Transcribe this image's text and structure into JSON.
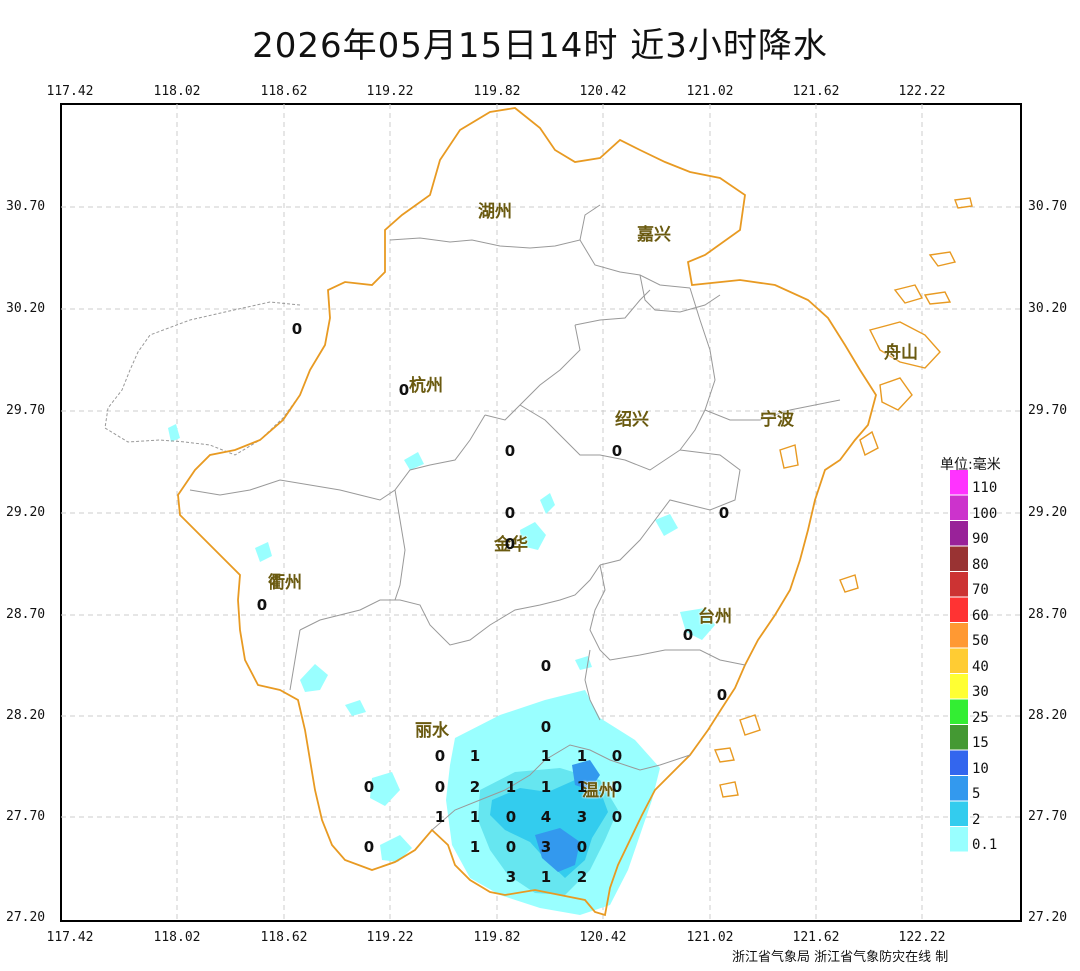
{
  "title": "2026年05月15日14时  近3小时降水",
  "x_ticks": [
    "117.42",
    "118.02",
    "118.62",
    "119.22",
    "119.82",
    "120.42",
    "121.02",
    "121.62",
    "122.22"
  ],
  "y_ticks": [
    "30.70",
    "30.20",
    "29.70",
    "29.20",
    "28.70",
    "28.20",
    "27.70",
    "27.20"
  ],
  "cities": [
    "湖州",
    "嘉兴",
    "杭州",
    "绍兴",
    "宁波",
    "舟山",
    "金华",
    "衢州",
    "台州",
    "丽水",
    "温州"
  ],
  "station_values": [
    "0",
    "0",
    "0",
    "0",
    "0",
    "0",
    "0",
    "0",
    "0",
    "0",
    "0",
    "0",
    "0",
    "1",
    "1",
    "1",
    "0",
    "0",
    "0",
    "2",
    "1",
    "1",
    "1",
    "0",
    "1",
    "1",
    "0",
    "4",
    "3",
    "0",
    "0",
    "1",
    "0",
    "3",
    "0",
    "3",
    "1",
    "2"
  ],
  "legend": {
    "title": "单位:毫米",
    "levels": [
      {
        "label": "110",
        "color": "#ff33ff"
      },
      {
        "label": "100",
        "color": "#cc33cc"
      },
      {
        "label": "90",
        "color": "#992299"
      },
      {
        "label": "80",
        "color": "#993333"
      },
      {
        "label": "70",
        "color": "#cc3333"
      },
      {
        "label": "60",
        "color": "#ff3333"
      },
      {
        "label": "50",
        "color": "#ff9933"
      },
      {
        "label": "40",
        "color": "#ffcc33"
      },
      {
        "label": "30",
        "color": "#ffff33"
      },
      {
        "label": "25",
        "color": "#33ee33"
      },
      {
        "label": "15",
        "color": "#449933"
      },
      {
        "label": "10",
        "color": "#3366ee"
      },
      {
        "label": "5",
        "color": "#3399ee"
      },
      {
        "label": "2",
        "color": "#33ccee"
      },
      {
        "label": "0.1",
        "color": "#99ffff"
      }
    ]
  },
  "footer": "浙江省气象局 浙江省气象防灾在线 制"
}
